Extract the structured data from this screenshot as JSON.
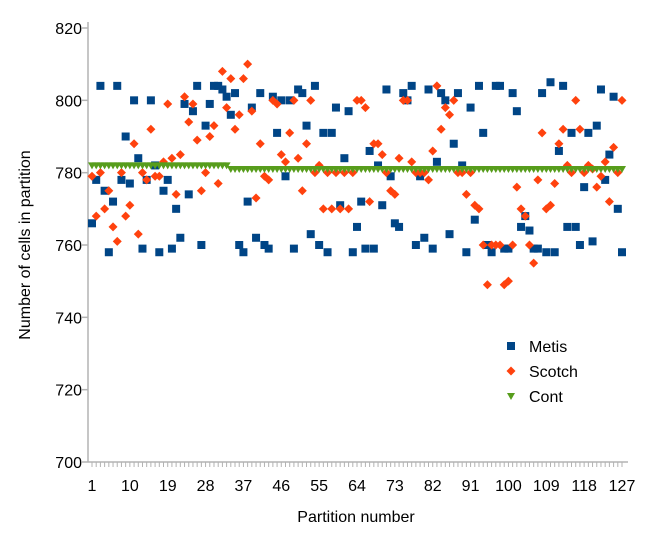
{
  "chart_data": {
    "type": "scatter",
    "title": "",
    "xlabel": "Partition number",
    "ylabel": "Number of cells in partition",
    "xlim": [
      1,
      127
    ],
    "ylim": [
      700,
      820
    ],
    "yticks": [
      700,
      720,
      740,
      760,
      780,
      800,
      820
    ],
    "xticks": [
      1,
      10,
      19,
      28,
      37,
      46,
      55,
      64,
      73,
      82,
      91,
      100,
      109,
      118,
      127
    ],
    "grid": false,
    "legend_position": "bottom-right",
    "series": [
      {
        "name": "Metis",
        "marker": "square",
        "color": "#004586",
        "values": [
          766,
          778,
          804,
          775,
          758,
          772,
          804,
          778,
          790,
          777,
          800,
          784,
          759,
          778,
          800,
          782,
          758,
          775,
          778,
          759,
          770,
          762,
          799,
          774,
          797,
          804,
          760,
          793,
          799,
          804,
          804,
          803,
          801,
          796,
          802,
          760,
          758,
          772,
          798,
          762,
          802,
          760,
          759,
          801,
          791,
          800,
          779,
          800,
          759,
          803,
          802,
          793,
          763,
          804,
          760,
          791,
          758,
          791,
          798,
          771,
          784,
          797,
          758,
          765,
          772,
          759,
          786,
          759,
          782,
          771,
          803,
          779,
          766,
          765,
          802,
          800,
          804,
          760,
          779,
          762,
          803,
          759,
          783,
          802,
          800,
          763,
          788,
          802,
          782,
          758,
          798,
          767,
          804,
          791,
          760,
          758,
          804,
          804,
          759,
          759,
          802,
          797,
          765,
          768,
          764,
          759,
          759,
          802,
          758,
          805,
          758,
          786,
          804,
          765,
          791,
          765,
          760,
          776,
          791,
          761,
          793,
          803,
          778,
          785,
          801,
          770,
          758
        ]
      },
      {
        "name": "Scotch",
        "marker": "diamond",
        "color": "#ff420e",
        "values": [
          779,
          768,
          780,
          770,
          775,
          765,
          761,
          780,
          768,
          771,
          788,
          763,
          780,
          778,
          792,
          779,
          779,
          783,
          799,
          784,
          774,
          785,
          801,
          794,
          799,
          789,
          775,
          780,
          790,
          793,
          777,
          808,
          798,
          806,
          792,
          796,
          806,
          810,
          797,
          773,
          788,
          779,
          778,
          800,
          799,
          785,
          783,
          791,
          800,
          784,
          775,
          788,
          800,
          780,
          782,
          770,
          780,
          770,
          780,
          770,
          780,
          770,
          780,
          800,
          800,
          798,
          772,
          788,
          788,
          785,
          780,
          775,
          774,
          784,
          800,
          800,
          783,
          780,
          780,
          780,
          778,
          786,
          804,
          792,
          798,
          796,
          800,
          780,
          780,
          774,
          780,
          771,
          770,
          760,
          749,
          760,
          760,
          760,
          749,
          750,
          760,
          776,
          770,
          768,
          760,
          755,
          778,
          791,
          770,
          771,
          777,
          788,
          792,
          782,
          780,
          800,
          792,
          780,
          782,
          781,
          776,
          779,
          783,
          772,
          787,
          780,
          800
        ]
      },
      {
        "name": "Cont",
        "marker": "triangle-down",
        "color": "#579d1c",
        "values": [
          782,
          782,
          782,
          782,
          782,
          782,
          782,
          782,
          782,
          782,
          782,
          782,
          782,
          782,
          782,
          782,
          782,
          782,
          782,
          782,
          782,
          782,
          782,
          782,
          782,
          782,
          782,
          782,
          782,
          782,
          782,
          782,
          782,
          781,
          781,
          781,
          781,
          781,
          781,
          781,
          781,
          781,
          781,
          781,
          781,
          781,
          781,
          781,
          781,
          781,
          781,
          781,
          781,
          781,
          781,
          781,
          781,
          781,
          781,
          781,
          781,
          781,
          781,
          781,
          781,
          781,
          781,
          781,
          781,
          781,
          781,
          781,
          781,
          781,
          781,
          781,
          781,
          781,
          781,
          781,
          781,
          781,
          781,
          781,
          781,
          781,
          781,
          781,
          781,
          781,
          781,
          781,
          781,
          781,
          781,
          781,
          781,
          781,
          781,
          781,
          781,
          781,
          781,
          781,
          781,
          781,
          781,
          781,
          781,
          781,
          781,
          781,
          781,
          781,
          781,
          781,
          781,
          781,
          781,
          781,
          781,
          781,
          781,
          781,
          781,
          781,
          781
        ]
      }
    ]
  }
}
